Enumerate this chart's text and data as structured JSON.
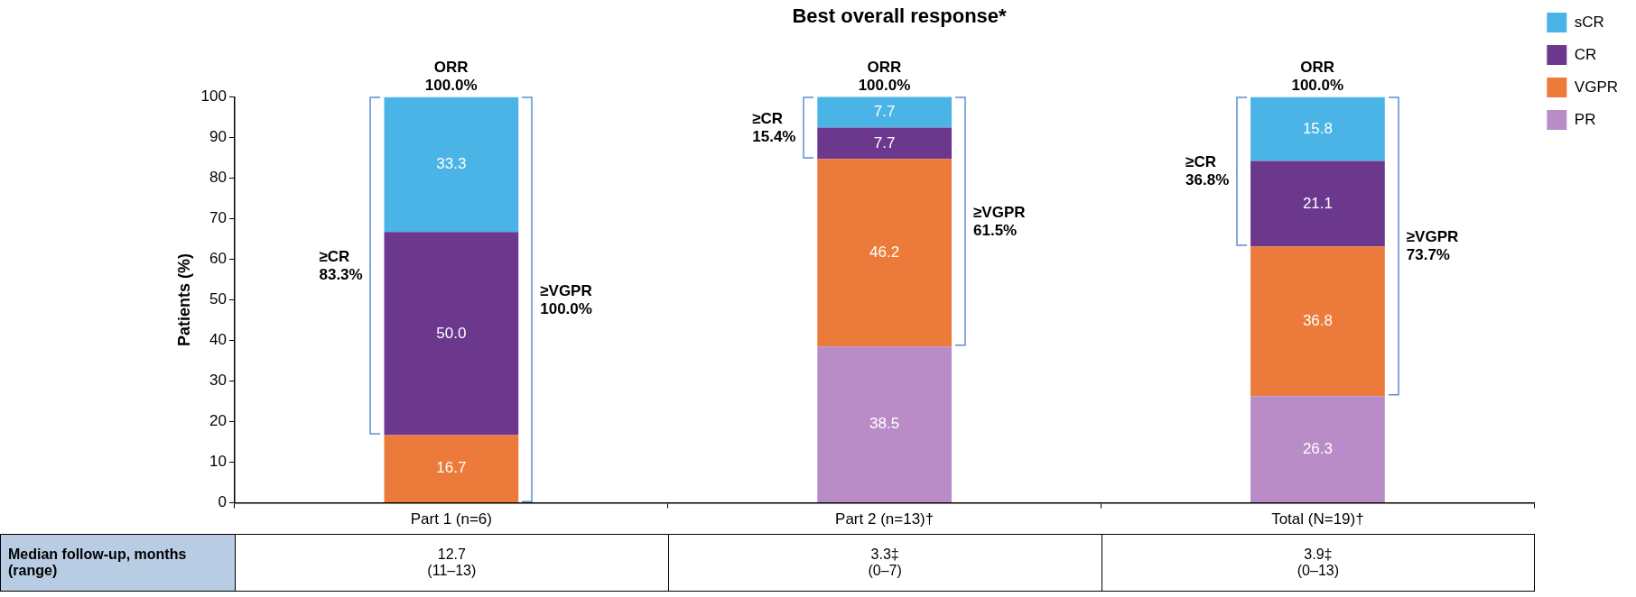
{
  "chart_data": {
    "type": "bar",
    "title": "Best overall response*",
    "ylabel": "Patients (%)",
    "categories": [
      "Part 1 (n=6)",
      "Part 2 (n=13)†",
      "Total (N=19)†"
    ],
    "stacked": true,
    "ylim": [
      0,
      100
    ],
    "yticks": [
      0,
      10,
      20,
      30,
      40,
      50,
      60,
      70,
      80,
      90,
      100
    ],
    "grid": false,
    "legend": "right",
    "data_labels": true,
    "series": [
      {
        "name": "PR",
        "color": "#b98cc7",
        "values": [
          null,
          38.5,
          26.3
        ],
        "value_labels": [
          null,
          "38.5",
          "26.3"
        ]
      },
      {
        "name": "VGPR",
        "color": "#ec7b3b",
        "values": [
          16.7,
          46.2,
          36.8
        ],
        "value_labels": [
          "16.7",
          "46.2",
          "36.8"
        ]
      },
      {
        "name": "CR",
        "color": "#6b388e",
        "values": [
          50.0,
          7.7,
          21.1
        ],
        "value_labels": [
          "50.0",
          "7.7",
          "21.1"
        ]
      },
      {
        "name": "sCR",
        "color": "#4bb4e6",
        "values": [
          33.3,
          7.7,
          15.8
        ],
        "value_labels": [
          "33.3",
          "7.7",
          "15.8"
        ]
      }
    ],
    "annotations": [
      "ORR\n100.0%",
      "≥CR\n83.3%",
      "≥VGPR\n100.0%",
      "ORR\n100.0%",
      "≥CR\n15.4%",
      "≥VGPR\n61.5%",
      "ORR\n100.0%",
      "≥CR\n36.8%",
      "≥VGPR\n73.7%",
      "Median follow-up, months (range)",
      "12.7\n(11–13)",
      "3.3‡\n(0–7)",
      "3.9‡\n(0–13)"
    ]
  }
}
